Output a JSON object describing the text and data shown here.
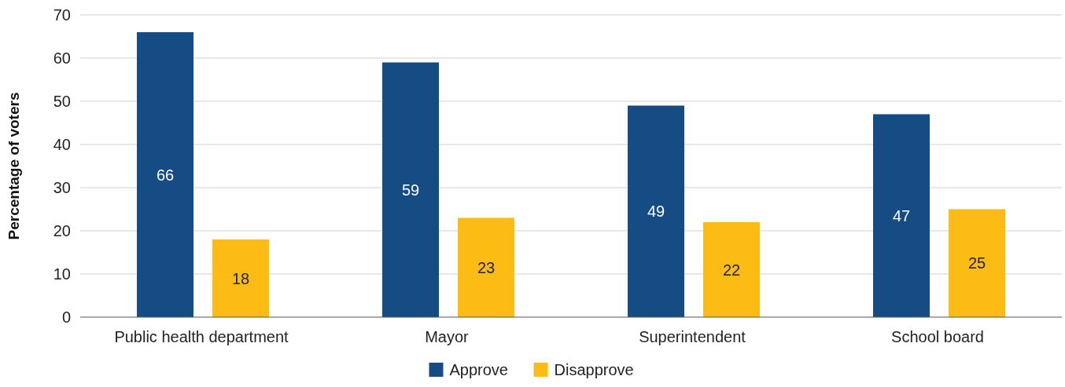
{
  "chart_data": {
    "type": "bar",
    "ylabel": "Percentage of voters",
    "categories": [
      "Public health department",
      "Mayor",
      "Superintendent",
      "School board"
    ],
    "series": [
      {
        "name": "Approve",
        "color": "#154c84",
        "values": [
          66,
          59,
          49,
          47
        ]
      },
      {
        "name": "Disapprove",
        "color": "#fcbc14",
        "values": [
          18,
          23,
          22,
          25
        ]
      }
    ],
    "ylim": [
      0,
      70
    ],
    "yticks": [
      0,
      10,
      20,
      30,
      40,
      50,
      60,
      70
    ],
    "grid": "y",
    "legend": "bottom",
    "data_labels": true
  }
}
